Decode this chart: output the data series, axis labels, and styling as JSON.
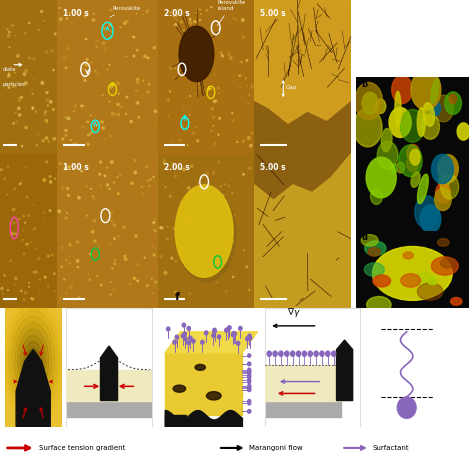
{
  "bg_color": "#ffffff",
  "orange_dark": "#8B5A00",
  "orange_mid": "#B8860B",
  "orange_bright": "#DAA520",
  "yellow_bright": "#FFD700",
  "panel_layout": {
    "rows_micro": 2,
    "cols_micro": 4,
    "row_schematic": 1,
    "row_legend": 1
  },
  "row1_times": [
    "",
    "1.00 s",
    "2.00 s",
    "5.00 s"
  ],
  "row2_times": [
    "",
    "1.00 s",
    "2.00 s",
    "5.00 s"
  ],
  "schematic_bg": "#FFFFF0",
  "substrate_color": "#999999",
  "blade_color": "#111111",
  "film_color": "#F5F0C8",
  "surfactant_color": "#8866BB",
  "red_arrow_color": "#CC0000",
  "legend_labels": [
    "Surface tension gradient",
    "Marangoni flow",
    "Surfactant"
  ]
}
